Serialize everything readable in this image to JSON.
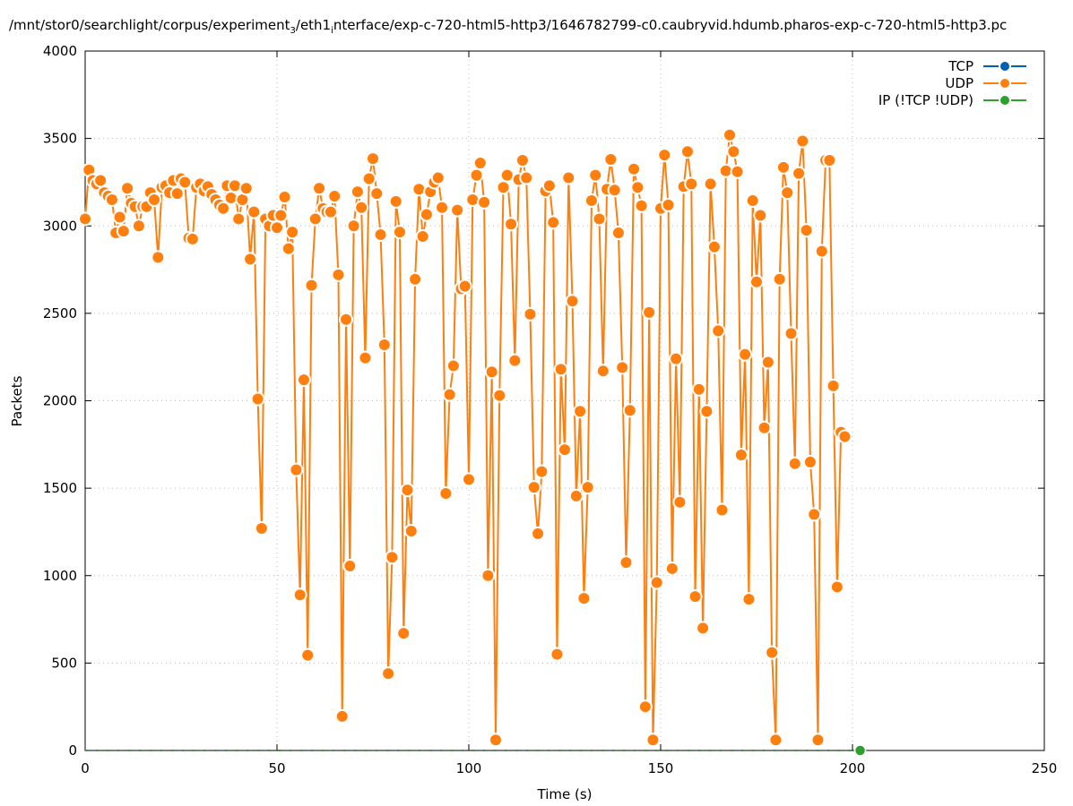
{
  "chart_data": {
    "type": "line",
    "title_parts": [
      "/mnt/stor0/searchlight/corpus/experiment",
      "3",
      "/eth1",
      "i",
      "nterface/exp-c-720-html5-http3/1646782799-c0.caubryvid.hdumb.pharos-exp-c-720-html5-http3.pc"
    ],
    "xlabel": "Time (s)",
    "ylabel": "Packets",
    "xlim": [
      0,
      250
    ],
    "ylim": [
      0,
      4000
    ],
    "xticks": [
      "0",
      "50",
      "100",
      "150",
      "200",
      "250"
    ],
    "yticks": [
      "0",
      "500",
      "1000",
      "1500",
      "2000",
      "2500",
      "3000",
      "3500",
      "4000"
    ],
    "grid": true,
    "legend_position": "top-right",
    "series": [
      {
        "name": "TCP",
        "color": "#0060ad",
        "values": []
      },
      {
        "name": "UDP",
        "color": "#ff7f0e",
        "x_start": 0,
        "x_step": 1,
        "values": [
          3040,
          3320,
          3260,
          3240,
          3260,
          3190,
          3170,
          3150,
          2960,
          3050,
          2970,
          3215,
          3130,
          3110,
          3000,
          3110,
          3110,
          3190,
          3150,
          2820,
          3220,
          3230,
          3190,
          3260,
          3185,
          3270,
          3250,
          2930,
          2925,
          3220,
          3240,
          3200,
          3225,
          3180,
          3150,
          3120,
          3100,
          3230,
          3160,
          3230,
          3040,
          3150,
          3215,
          2810,
          3080,
          2010,
          1270,
          3040,
          3000,
          3060,
          2990,
          3060,
          3165,
          2870,
          2965,
          1605,
          890,
          2120,
          545,
          2660,
          3040,
          3215,
          3100,
          3080,
          3080,
          3170,
          2720,
          195,
          2465,
          1055,
          3000,
          3195,
          3105,
          2245,
          3270,
          3385,
          3185,
          2950,
          2320,
          440,
          1105,
          3140,
          2965,
          670,
          1490,
          1255,
          2695,
          3210,
          2940,
          3065,
          3195,
          3250,
          3275,
          3105,
          1470,
          2035,
          2200,
          3090,
          2640,
          2655,
          1550,
          3150,
          3290,
          3360,
          3135,
          1000,
          2165,
          60,
          2030,
          3220,
          3290,
          3010,
          2230,
          3265,
          3375,
          3275,
          2495,
          1505,
          1240,
          1595,
          3200,
          3230,
          3020,
          550,
          2180,
          1720,
          3275,
          2570,
          1455,
          1940,
          870,
          1505,
          3145,
          3290,
          3040,
          2170,
          3210,
          3380,
          3205,
          2960,
          2190,
          1075,
          1945,
          3325,
          3220,
          3115,
          250,
          2505,
          60,
          960,
          3100,
          3405,
          3120,
          1040,
          2240,
          1420,
          3225,
          3425,
          3240,
          880,
          2065,
          700,
          1940,
          3240,
          2880,
          2400,
          1375,
          3315,
          3520,
          3425,
          3310,
          1690,
          2265,
          865,
          3145,
          2680,
          3060,
          1845,
          2220,
          560,
          60,
          2695,
          3335,
          3190,
          2385,
          1640,
          3300,
          3485,
          2975,
          1650,
          1350,
          60,
          2855,
          3375,
          3375,
          2085,
          935,
          1820,
          1795
        ]
      },
      {
        "name": "IP (!TCP  !UDP)",
        "color": "#2ca02c",
        "x_start": 0,
        "x_end": 202,
        "values": [
          0,
          0
        ]
      }
    ]
  }
}
